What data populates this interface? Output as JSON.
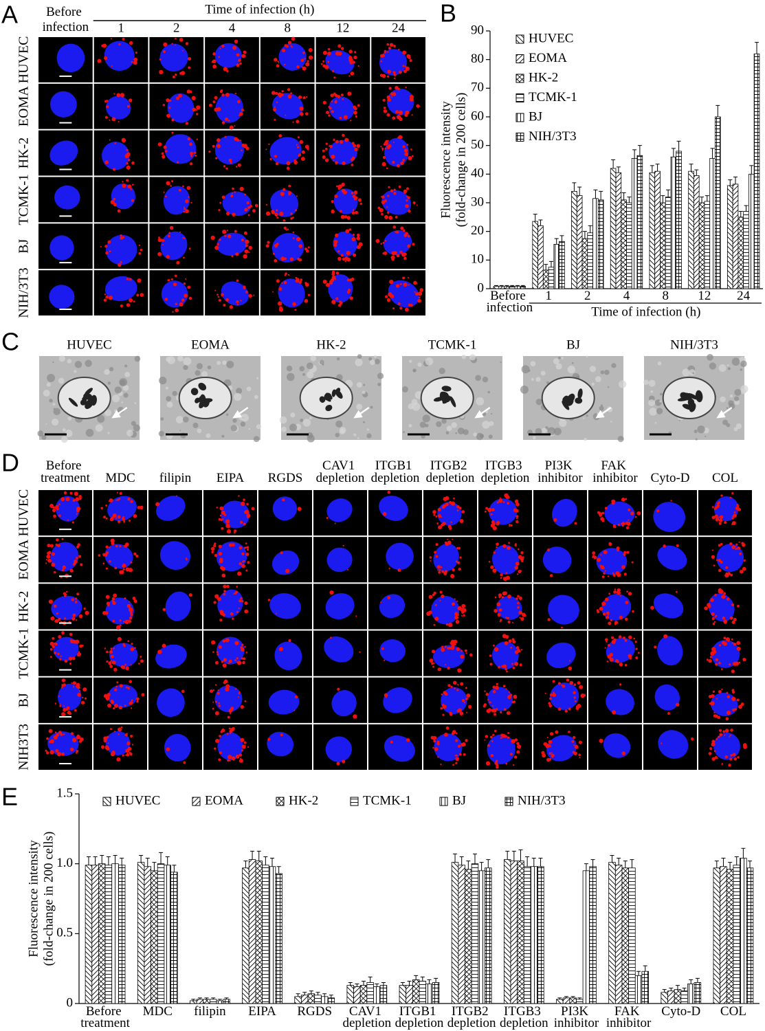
{
  "panel_labels": [
    "A",
    "B",
    "C",
    "D",
    "E"
  ],
  "panel_d": {
    "rows": [
      "HUVEC",
      "EOMA",
      "HK-2",
      "TCMK-1",
      "BJ",
      "NIH3T3"
    ]
  },
  "chart_data": [
    {
      "type": "bar",
      "xlabel": "Time of infection (h)",
      "ylabel": [
        "Fluorescence intensity",
        "(fold-change in 200 cells)"
      ],
      "categories": [
        "Before infection",
        "1",
        "2",
        "4",
        "8",
        "12",
        "24"
      ],
      "ylim": [
        0,
        90
      ],
      "yticks": [
        0,
        10,
        20,
        30,
        40,
        50,
        60,
        70,
        80,
        90
      ],
      "legend": "upper left",
      "series": [
        {
          "name": "HUVEC",
          "pattern": "diagonal-down",
          "color": "#000000",
          "values": [
            0.8,
            23.5,
            34,
            42,
            40.5,
            41,
            36
          ],
          "errors": [
            0.3,
            2.5,
            3,
            3,
            2.5,
            2.5,
            2
          ]
        },
        {
          "name": "EOMA",
          "pattern": "diagonal-up",
          "color": "#000000",
          "values": [
            0.8,
            22,
            32.5,
            40.5,
            41,
            39.5,
            36.5
          ],
          "errors": [
            0.3,
            2,
            3,
            2,
            2.5,
            2,
            2.5
          ]
        },
        {
          "name": "HK-2",
          "pattern": "cross",
          "color": "#000000",
          "values": [
            0.8,
            6.5,
            17.5,
            31,
            30,
            30,
            25
          ],
          "errors": [
            0.3,
            2,
            2.5,
            2.5,
            2.5,
            2,
            2
          ]
        },
        {
          "name": "TCMK-1",
          "pattern": "horizontal",
          "color": "#000000",
          "values": [
            0.8,
            7.5,
            19.5,
            30,
            32,
            30.5,
            27
          ],
          "errors": [
            0.3,
            2,
            2.5,
            2,
            2.5,
            2,
            2
          ]
        },
        {
          "name": "BJ",
          "pattern": "vertical",
          "color": "#000000",
          "values": [
            0.8,
            15.5,
            31.5,
            45.5,
            46,
            45.5,
            40
          ],
          "errors": [
            0.3,
            2,
            3,
            3,
            3,
            3.5,
            3
          ]
        },
        {
          "name": "NIH/3T3",
          "pattern": "grid",
          "color": "#000000",
          "values": [
            0.8,
            16.5,
            31,
            46.5,
            48,
            60,
            82
          ],
          "errors": [
            0.3,
            2,
            3,
            3.5,
            3.5,
            4,
            4
          ]
        }
      ]
    },
    {
      "type": "bar",
      "ylabel": [
        "Fluorescence intensity",
        "(fold-change in 200 cells)"
      ],
      "categories": [
        "Before treatment",
        "MDC",
        "filipin",
        "EIPA",
        "RGDS",
        "CAV1 depletion",
        "ITGB1 depletion",
        "ITGB2 depletion",
        "ITGB3 depletion",
        "PI3K inhibitor",
        "FAK inhibitor",
        "Cyto-D",
        "COL"
      ],
      "ylim": [
        0,
        1.5
      ],
      "yticks": [
        0,
        0.5,
        {
          "value": 1,
          "label": "1.0"
        },
        1.5
      ],
      "legend": "top",
      "series": [
        {
          "name": "HUVEC",
          "pattern": "diagonal-down",
          "color": "#000000",
          "values": [
            0.99,
            1.01,
            0.02,
            0.97,
            0.05,
            0.13,
            0.13,
            1.01,
            1.03,
            0.03,
            1.01,
            0.08,
            0.97
          ],
          "errors": [
            0.06,
            0.05,
            0.01,
            0.05,
            0.02,
            0.02,
            0.02,
            0.06,
            0.06,
            0.01,
            0.05,
            0.02,
            0.05
          ]
        },
        {
          "name": "EOMA",
          "pattern": "diagonal-up",
          "color": "#000000",
          "values": [
            0.99,
            0.98,
            0.03,
            1.03,
            0.06,
            0.12,
            0.13,
            0.99,
            1.02,
            0.04,
            0.99,
            0.09,
            0.98
          ],
          "errors": [
            0.06,
            0.06,
            0.01,
            0.06,
            0.02,
            0.02,
            0.03,
            0.06,
            0.07,
            0.01,
            0.05,
            0.02,
            0.06
          ]
        },
        {
          "name": "HK-2",
          "pattern": "cross",
          "color": "#000000",
          "values": [
            1.0,
            0.95,
            0.03,
            1.02,
            0.07,
            0.13,
            0.17,
            0.96,
            1.02,
            0.04,
            0.97,
            0.1,
            0.96
          ],
          "errors": [
            0.06,
            0.06,
            0.01,
            0.07,
            0.02,
            0.03,
            0.03,
            0.06,
            0.08,
            0.01,
            0.05,
            0.03,
            0.05
          ]
        },
        {
          "name": "TCMK-1",
          "pattern": "horizontal",
          "color": "#000000",
          "values": [
            0.99,
            1.0,
            0.03,
            0.99,
            0.06,
            0.15,
            0.16,
            1.0,
            0.98,
            0.03,
            0.97,
            0.09,
            0.99
          ],
          "errors": [
            0.06,
            0.08,
            0.01,
            0.06,
            0.02,
            0.04,
            0.03,
            0.07,
            0.07,
            0.01,
            0.06,
            0.02,
            0.06
          ]
        },
        {
          "name": "BJ",
          "pattern": "vertical",
          "color": "#000000",
          "values": [
            1.0,
            0.99,
            0.02,
            0.98,
            0.05,
            0.12,
            0.14,
            0.95,
            0.98,
            0.95,
            0.2,
            0.14,
            1.04
          ],
          "errors": [
            0.06,
            0.06,
            0.01,
            0.06,
            0.02,
            0.02,
            0.03,
            0.06,
            0.06,
            0.05,
            0.03,
            0.03,
            0.07
          ]
        },
        {
          "name": "NIH/3T3",
          "pattern": "grid",
          "color": "#000000",
          "values": [
            0.99,
            0.94,
            0.03,
            0.93,
            0.04,
            0.13,
            0.15,
            0.97,
            0.98,
            0.98,
            0.23,
            0.15,
            0.97
          ],
          "errors": [
            0.05,
            0.05,
            0.01,
            0.05,
            0.02,
            0.02,
            0.03,
            0.06,
            0.06,
            0.05,
            0.04,
            0.03,
            0.05
          ]
        }
      ]
    }
  ]
}
